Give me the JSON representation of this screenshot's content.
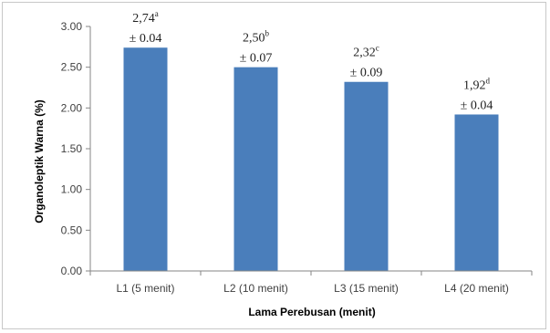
{
  "chart_data": {
    "type": "bar",
    "categories": [
      "L1 (5 menit)",
      "L2 (10 menit)",
      "L3 (15 menit)",
      "L4 (20 menit)"
    ],
    "values": [
      2.74,
      2.5,
      2.32,
      1.92
    ],
    "data_labels": [
      {
        "value": "2,74",
        "superscript": "a",
        "error": "± 0.04"
      },
      {
        "value": "2,50",
        "superscript": "b",
        "error": "± 0.07"
      },
      {
        "value": "2,32",
        "superscript": "c",
        "error": "± 0.09"
      },
      {
        "value": "1,92",
        "superscript": "d",
        "error": "± 0.04"
      }
    ],
    "y_ticks": [
      "0.00",
      "0.50",
      "1.00",
      "1.50",
      "2.00",
      "2.50",
      "3.00"
    ],
    "xlabel": "Lama Perebusan (menit)",
    "ylabel": "Organoleptik Warna (%)",
    "ylim": [
      0,
      3
    ],
    "grid": false,
    "bar_color": "#4a7ebb"
  }
}
